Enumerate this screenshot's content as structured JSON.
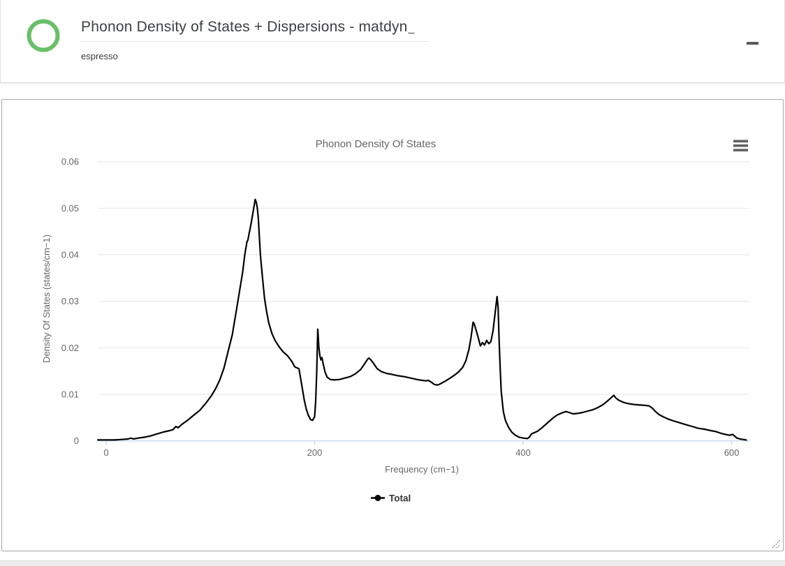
{
  "window": {
    "title": "Phonon Density of States + Dispersions - matdyn",
    "title_cursor": "_",
    "subtitle": "espresso"
  },
  "icons": {
    "logo": "green-ring-logo",
    "minimize": "minimize-dash",
    "chart_menu": "hamburger-menu",
    "resize": "diagonal-resize-grip"
  },
  "colors": {
    "logo_green": "#6abf69",
    "series_line": "#000000",
    "grid_line": "#e6e6e6",
    "axis_line": "#ccd6eb",
    "tick_label": "#666666",
    "chart_title": "#666666",
    "legend_text": "#333333",
    "panel_border": "#a8a8a8"
  },
  "chart_data": {
    "type": "line",
    "title": "Phonon Density Of States",
    "xlabel": "Frequency (cm−1)",
    "ylabel": "Density Of States (states/cm−1)",
    "xlim": [
      -8,
      617
    ],
    "ylim": [
      0,
      0.06
    ],
    "xticks": [
      0,
      200,
      400,
      600
    ],
    "xtick_labels": [
      "0",
      "200",
      "400",
      "600"
    ],
    "yticks": [
      0,
      0.01,
      0.02,
      0.03,
      0.04,
      0.05,
      0.06
    ],
    "ytick_labels": [
      "0",
      "0.01",
      "0.02",
      "0.03",
      "0.04",
      "0.05",
      "0.06"
    ],
    "grid": "horizontal-only",
    "legend_position": "bottom-center",
    "series": [
      {
        "name": "Total",
        "color": "#000000",
        "points": [
          [
            -8,
            0.0002
          ],
          [
            0,
            0.0002
          ],
          [
            8,
            0.0002
          ],
          [
            15,
            0.0003
          ],
          [
            21,
            0.0004
          ],
          [
            24,
            0.0006
          ],
          [
            26,
            0.0004
          ],
          [
            31,
            0.0006
          ],
          [
            37,
            0.0008
          ],
          [
            43,
            0.0011
          ],
          [
            49,
            0.0015
          ],
          [
            55,
            0.0019
          ],
          [
            61,
            0.0022
          ],
          [
            64,
            0.0024
          ],
          [
            67,
            0.0031
          ],
          [
            69,
            0.0028
          ],
          [
            73,
            0.0036
          ],
          [
            78,
            0.0044
          ],
          [
            84,
            0.0055
          ],
          [
            90,
            0.0066
          ],
          [
            96,
            0.0082
          ],
          [
            101,
            0.0097
          ],
          [
            105,
            0.0112
          ],
          [
            109,
            0.0131
          ],
          [
            113,
            0.0156
          ],
          [
            117,
            0.0192
          ],
          [
            121,
            0.0228
          ],
          [
            125,
            0.0281
          ],
          [
            128,
            0.0322
          ],
          [
            131,
            0.0363
          ],
          [
            133,
            0.04
          ],
          [
            135,
            0.0427
          ],
          [
            136,
            0.0432
          ],
          [
            137,
            0.0444
          ],
          [
            139,
            0.0466
          ],
          [
            141,
            0.0492
          ],
          [
            143,
            0.0519
          ],
          [
            144,
            0.0513
          ],
          [
            145,
            0.0501
          ],
          [
            146,
            0.0478
          ],
          [
            147,
            0.0437
          ],
          [
            148,
            0.0399
          ],
          [
            150,
            0.035
          ],
          [
            152,
            0.0306
          ],
          [
            154,
            0.0277
          ],
          [
            156,
            0.0254
          ],
          [
            159,
            0.0231
          ],
          [
            162,
            0.0216
          ],
          [
            166,
            0.0202
          ],
          [
            170,
            0.0191
          ],
          [
            174,
            0.0183
          ],
          [
            178,
            0.0171
          ],
          [
            181,
            0.0159
          ],
          [
            183,
            0.0157
          ],
          [
            185,
            0.0155
          ],
          [
            188,
            0.0115
          ],
          [
            190,
            0.0088
          ],
          [
            192,
            0.0068
          ],
          [
            194,
            0.0055
          ],
          [
            196,
            0.0046
          ],
          [
            198,
            0.0044
          ],
          [
            200,
            0.0052
          ],
          [
            201,
            0.0085
          ],
          [
            202,
            0.0148
          ],
          [
            203,
            0.024
          ],
          [
            204,
            0.0202
          ],
          [
            205,
            0.0183
          ],
          [
            206,
            0.0174
          ],
          [
            207,
            0.0179
          ],
          [
            208,
            0.0168
          ],
          [
            210,
            0.0148
          ],
          [
            212,
            0.0137
          ],
          [
            215,
            0.0132
          ],
          [
            219,
            0.0131
          ],
          [
            224,
            0.0132
          ],
          [
            229,
            0.0135
          ],
          [
            234,
            0.0138
          ],
          [
            239,
            0.0144
          ],
          [
            244,
            0.0153
          ],
          [
            248,
            0.0166
          ],
          [
            251,
            0.0176
          ],
          [
            252,
            0.0178
          ],
          [
            254,
            0.0174
          ],
          [
            257,
            0.0165
          ],
          [
            260,
            0.0155
          ],
          [
            264,
            0.0149
          ],
          [
            269,
            0.0145
          ],
          [
            274,
            0.0143
          ],
          [
            280,
            0.014
          ],
          [
            286,
            0.0138
          ],
          [
            292,
            0.0135
          ],
          [
            298,
            0.0132
          ],
          [
            303,
            0.013
          ],
          [
            307,
            0.0129
          ],
          [
            309,
            0.013
          ],
          [
            312,
            0.0126
          ],
          [
            315,
            0.0121
          ],
          [
            318,
            0.012
          ],
          [
            321,
            0.0123
          ],
          [
            325,
            0.0128
          ],
          [
            330,
            0.0135
          ],
          [
            334,
            0.0141
          ],
          [
            338,
            0.0148
          ],
          [
            342,
            0.0158
          ],
          [
            345,
            0.0172
          ],
          [
            348,
            0.0196
          ],
          [
            350,
            0.0222
          ],
          [
            352,
            0.0255
          ],
          [
            353,
            0.0252
          ],
          [
            355,
            0.0237
          ],
          [
            357,
            0.0221
          ],
          [
            359,
            0.0204
          ],
          [
            361,
            0.0211
          ],
          [
            363,
            0.0206
          ],
          [
            365,
            0.0216
          ],
          [
            367,
            0.0209
          ],
          [
            369,
            0.0213
          ],
          [
            371,
            0.0235
          ],
          [
            373,
            0.0273
          ],
          [
            375,
            0.031
          ],
          [
            376,
            0.0287
          ],
          [
            377,
            0.0215
          ],
          [
            378,
            0.0155
          ],
          [
            379,
            0.0106
          ],
          [
            381,
            0.0063
          ],
          [
            383,
            0.0044
          ],
          [
            386,
            0.0029
          ],
          [
            389,
            0.0019
          ],
          [
            392,
            0.0013
          ],
          [
            396,
            0.0008
          ],
          [
            400,
            0.0006
          ],
          [
            404,
            0.0005
          ],
          [
            406,
            0.0008
          ],
          [
            408,
            0.0015
          ],
          [
            411,
            0.0018
          ],
          [
            414,
            0.0021
          ],
          [
            418,
            0.0028
          ],
          [
            421,
            0.0034
          ],
          [
            425,
            0.0042
          ],
          [
            429,
            0.005
          ],
          [
            433,
            0.0056
          ],
          [
            437,
            0.006
          ],
          [
            441,
            0.0063
          ],
          [
            444,
            0.0061
          ],
          [
            448,
            0.0058
          ],
          [
            452,
            0.0059
          ],
          [
            457,
            0.0061
          ],
          [
            462,
            0.0064
          ],
          [
            467,
            0.0067
          ],
          [
            472,
            0.0072
          ],
          [
            476,
            0.0077
          ],
          [
            480,
            0.0084
          ],
          [
            484,
            0.0092
          ],
          [
            487,
            0.0098
          ],
          [
            489,
            0.0092
          ],
          [
            492,
            0.0087
          ],
          [
            496,
            0.0083
          ],
          [
            501,
            0.008
          ],
          [
            507,
            0.0078
          ],
          [
            513,
            0.0077
          ],
          [
            518,
            0.0076
          ],
          [
            521,
            0.0075
          ],
          [
            524,
            0.007
          ],
          [
            527,
            0.0063
          ],
          [
            530,
            0.0057
          ],
          [
            534,
            0.0052
          ],
          [
            539,
            0.0047
          ],
          [
            544,
            0.0043
          ],
          [
            550,
            0.0039
          ],
          [
            556,
            0.0035
          ],
          [
            562,
            0.0031
          ],
          [
            568,
            0.0027
          ],
          [
            574,
            0.0025
          ],
          [
            580,
            0.0022
          ],
          [
            585,
            0.002
          ],
          [
            590,
            0.0016
          ],
          [
            594,
            0.0014
          ],
          [
            598,
            0.0012
          ],
          [
            601,
            0.0014
          ],
          [
            603,
            0.001
          ],
          [
            605,
            0.0006
          ],
          [
            608,
            0.0004
          ],
          [
            611,
            0.0003
          ],
          [
            614,
            0.0002
          ]
        ]
      }
    ]
  }
}
